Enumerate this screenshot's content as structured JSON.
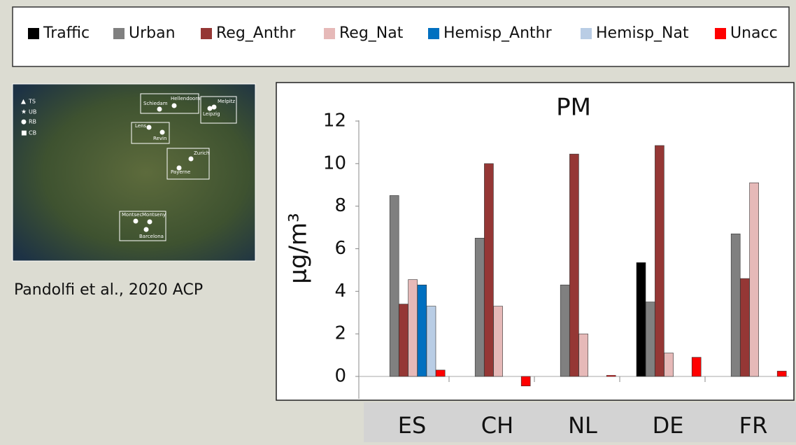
{
  "chart_data": {
    "type": "bar",
    "title": "PM",
    "y_label": "µg/m³",
    "categories": [
      "ES",
      "CH",
      "NL",
      "DE",
      "FR"
    ],
    "series": [
      {
        "name": "Traffic",
        "color": "#000000",
        "values": [
          null,
          null,
          null,
          5.35,
          null
        ]
      },
      {
        "name": "Urban",
        "color": "#808080",
        "values": [
          8.5,
          6.5,
          4.3,
          3.5,
          6.7
        ]
      },
      {
        "name": "Reg_Anthr",
        "color": "#953735",
        "values": [
          3.4,
          10.0,
          10.45,
          10.85,
          4.6
        ]
      },
      {
        "name": "Reg_Nat",
        "color": "#e6b9b8",
        "values": [
          4.55,
          3.3,
          2.0,
          1.1,
          9.1
        ]
      },
      {
        "name": "Hemisp_Anthr",
        "color": "#0070c0",
        "values": [
          4.3,
          null,
          null,
          null,
          null
        ]
      },
      {
        "name": "Hemisp_Nat",
        "color": "#b9cde5",
        "values": [
          3.3,
          null,
          null,
          null,
          null
        ]
      },
      {
        "name": "Unacc",
        "color": "#ff0000",
        "values": [
          0.3,
          -0.45,
          0.05,
          0.9,
          0.25
        ]
      }
    ],
    "ylim": [
      -1,
      12
    ],
    "yticks": [
      0,
      2,
      4,
      6,
      8,
      10,
      12
    ],
    "grid": false
  },
  "map": {
    "legend": [
      "TS",
      "UB",
      "RB",
      "CB"
    ],
    "sites": [
      "Schiedam",
      "Hellendoorn",
      "Melpitz",
      "Leipzig",
      "Lens",
      "Revin",
      "Zurich",
      "Payerne",
      "Montsec",
      "Montseny",
      "Barcelona"
    ]
  },
  "caption": "Pandolfi et al., 2020 ACP"
}
